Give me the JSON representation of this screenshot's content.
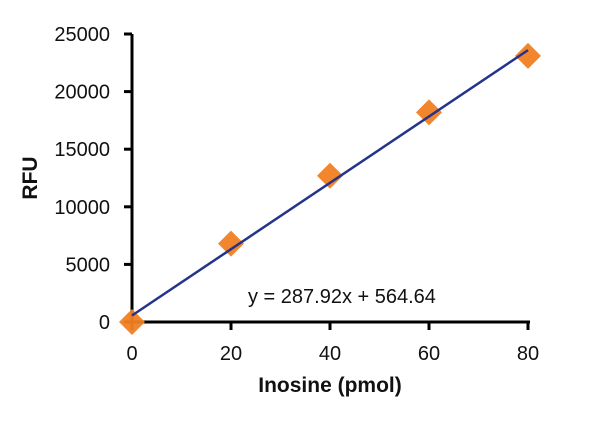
{
  "chart_data": {
    "type": "scatter",
    "title": "",
    "xlabel": "Inosine (pmol)",
    "ylabel": "RFU",
    "xlim": [
      0,
      80
    ],
    "ylim": [
      0,
      25000
    ],
    "xticks": [
      0,
      20,
      40,
      60,
      80
    ],
    "yticks": [
      0,
      5000,
      10000,
      15000,
      20000,
      25000
    ],
    "grid": false,
    "series": [
      {
        "x": [
          0,
          20,
          40,
          60,
          80
        ],
        "y": [
          0,
          6800,
          12700,
          18200,
          23100
        ],
        "marker": "diamond",
        "color": "#f07f22"
      }
    ],
    "trendline": {
      "slope": 287.92,
      "intercept": 564.64,
      "color": "#24348a",
      "equation": "y = 287.92x + 564.64"
    }
  }
}
